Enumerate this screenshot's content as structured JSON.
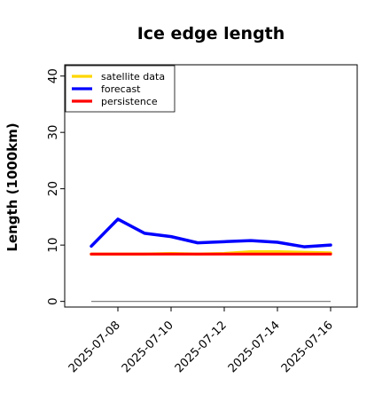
{
  "chart_data": {
    "type": "line",
    "title": "Ice edge length",
    "xlabel": "",
    "ylabel": "Length (1000km)",
    "ylim": [
      -1,
      42
    ],
    "y_ticks": [
      0,
      10,
      20,
      30,
      40
    ],
    "x_ticks": [
      "2025-07-08",
      "2025-07-10",
      "2025-07-12",
      "2025-07-14",
      "2025-07-16"
    ],
    "x_tick_highlight": "2025-07-08",
    "x_tick_highlight_color": "#228B22",
    "x": [
      "2025-07-07",
      "2025-07-08",
      "2025-07-09",
      "2025-07-10",
      "2025-07-11",
      "2025-07-12",
      "2025-07-13",
      "2025-07-14",
      "2025-07-15",
      "2025-07-16"
    ],
    "xlim": [
      "2025-07-06",
      "2025-07-17"
    ],
    "series": [
      {
        "name": "satellite data",
        "color": "#FFD700",
        "values": [
          8.4,
          8.4,
          8.4,
          8.5,
          8.4,
          8.5,
          8.8,
          8.8,
          8.7,
          8.6
        ]
      },
      {
        "name": "forecast",
        "color": "#0000FF",
        "values": [
          9.8,
          14.6,
          12.1,
          11.5,
          10.4,
          10.6,
          10.8,
          10.5,
          9.7,
          10.0
        ]
      },
      {
        "name": "persistence",
        "color": "#FF0000",
        "values": [
          8.4,
          8.4,
          8.4,
          8.4,
          8.4,
          8.4,
          8.4,
          8.4,
          8.4,
          8.4
        ]
      }
    ],
    "reference_line": {
      "y": 0,
      "color": "#808080",
      "from": "2025-07-07",
      "to": "2025-07-16"
    },
    "legend_position": "top-left",
    "grid": false
  }
}
